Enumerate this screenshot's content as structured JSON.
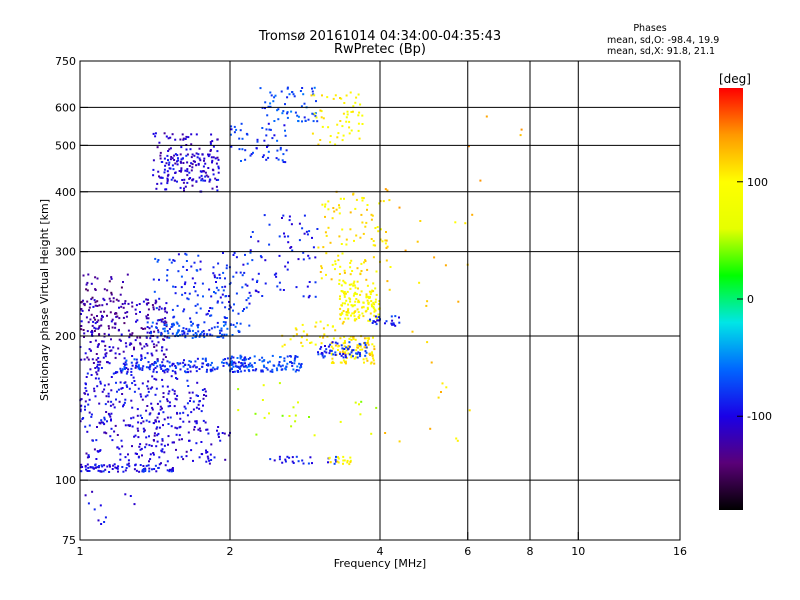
{
  "chart_data": {
    "type": "scatter",
    "title": "Tromsø 20161014 04:34:00-04:35:43",
    "subtitle": "RwPretec (Bp)",
    "xlabel": "Frequency [MHz]",
    "ylabel": "Stationary phase Virtual Height [km]",
    "x_scale": "log",
    "y_scale": "log",
    "xlim": [
      1,
      16
    ],
    "ylim": [
      75,
      750
    ],
    "x_ticks": [
      {
        "value": 1,
        "label": "1"
      },
      {
        "value": 2,
        "label": "2"
      },
      {
        "value": 4,
        "label": "4"
      },
      {
        "value": 6,
        "label": "6"
      },
      {
        "value": 8,
        "label": "8"
      },
      {
        "value": 10,
        "label": "10"
      },
      {
        "value": 16,
        "label": "16"
      }
    ],
    "y_ticks": [
      {
        "value": 75,
        "label": "75"
      },
      {
        "value": 100,
        "label": "100"
      },
      {
        "value": 200,
        "label": "200"
      },
      {
        "value": 300,
        "label": "300"
      },
      {
        "value": 400,
        "label": "400"
      },
      {
        "value": 500,
        "label": "500"
      },
      {
        "value": 600,
        "label": "600"
      },
      {
        "value": 750,
        "label": "750"
      }
    ],
    "x_gridlines": [
      2,
      4,
      6,
      8,
      10
    ],
    "y_gridlines": [
      100,
      200,
      300,
      400,
      500,
      600
    ],
    "grid": true,
    "phase_header": "Phases",
    "phase_stats": [
      "mean, sd,O: -98.4, 19.9",
      "mean, sd,X:  91.8, 21.1"
    ],
    "colorbar": {
      "label": "[deg]",
      "min": -180,
      "max": 180,
      "ticks": [
        {
          "value": 100,
          "label": "100"
        },
        {
          "value": 0,
          "label": "0"
        },
        {
          "value": -100,
          "label": "-100"
        }
      ],
      "colors": [
        "#000000",
        "#5a0078",
        "#1a00e6",
        "#0066ff",
        "#00e6e6",
        "#00ff00",
        "#e6ff00",
        "#ffff00",
        "#ff9900",
        "#ff0000"
      ]
    },
    "clusters": [
      {
        "x": [
          1.0,
          1.55
        ],
        "y": [
          104,
          108
        ],
        "phase": -95,
        "n": 90
      },
      {
        "x": [
          1.0,
          2.0
        ],
        "y": [
          108,
          130
        ],
        "phase": -105,
        "n": 150
      },
      {
        "x": [
          1.0,
          1.8
        ],
        "y": [
          130,
          175
        ],
        "phase": -100,
        "n": 260
      },
      {
        "x": [
          1.0,
          1.5
        ],
        "y": [
          175,
          240
        ],
        "phase": -115,
        "n": 220
      },
      {
        "x": [
          1.0,
          1.25
        ],
        "y": [
          200,
          270
        ],
        "phase": -130,
        "n": 60
      },
      {
        "x": [
          1.2,
          2.2
        ],
        "y": [
          168,
          180
        ],
        "phase": -80,
        "n": 140
      },
      {
        "x": [
          1.35,
          2.1
        ],
        "y": [
          198,
          214
        ],
        "phase": -75,
        "n": 120
      },
      {
        "x": [
          1.4,
          2.2
        ],
        "y": [
          210,
          300
        ],
        "phase": -85,
        "n": 140
      },
      {
        "x": [
          1.4,
          1.9
        ],
        "y": [
          400,
          530
        ],
        "phase": -110,
        "n": 130
      },
      {
        "x": [
          1.45,
          1.9
        ],
        "y": [
          420,
          480
        ],
        "phase": -100,
        "n": 70
      },
      {
        "x": [
          2.0,
          2.8
        ],
        "y": [
          168,
          182
        ],
        "phase": -75,
        "n": 110
      },
      {
        "x": [
          2.3,
          3.0
        ],
        "y": [
          560,
          660
        ],
        "phase": -70,
        "n": 60
      },
      {
        "x": [
          2.0,
          2.6
        ],
        "y": [
          460,
          560
        ],
        "phase": -80,
        "n": 55
      },
      {
        "x": [
          2.2,
          3.0
        ],
        "y": [
          240,
          360
        ],
        "phase": -90,
        "n": 70
      },
      {
        "x": [
          2.9,
          3.7
        ],
        "y": [
          500,
          650
        ],
        "phase": 100,
        "n": 55
      },
      {
        "x": [
          3.0,
          4.2
        ],
        "y": [
          260,
          400
        ],
        "phase": 110,
        "n": 110
      },
      {
        "x": [
          3.3,
          4.0
        ],
        "y": [
          215,
          260
        ],
        "phase": 95,
        "n": 140
      },
      {
        "x": [
          3.2,
          3.9
        ],
        "y": [
          175,
          200
        ],
        "phase": 110,
        "n": 90
      },
      {
        "x": [
          2.5,
          3.5
        ],
        "y": [
          185,
          215
        ],
        "phase": 105,
        "n": 40
      },
      {
        "x": [
          3.0,
          3.8
        ],
        "y": [
          180,
          195
        ],
        "phase": -85,
        "n": 60
      },
      {
        "x": [
          3.8,
          4.4
        ],
        "y": [
          210,
          220
        ],
        "phase": -90,
        "n": 25
      },
      {
        "x": [
          2.4,
          3.3
        ],
        "y": [
          108,
          112
        ],
        "phase": -90,
        "n": 25
      },
      {
        "x": [
          3.1,
          3.5
        ],
        "y": [
          108,
          112
        ],
        "phase": 100,
        "n": 18
      },
      {
        "x": [
          4.0,
          6.2
        ],
        "y": [
          120,
          420
        ],
        "phase": 120,
        "n": 30
      },
      {
        "x": [
          1.0,
          1.35
        ],
        "y": [
          80,
          96
        ],
        "phase": -100,
        "n": 12
      },
      {
        "x": [
          2.0,
          4.0
        ],
        "y": [
          120,
          160
        ],
        "phase": 60,
        "n": 25
      },
      {
        "x": [
          6.0,
          7.8
        ],
        "y": [
          400,
          600
        ],
        "phase": 130,
        "n": 5
      }
    ]
  }
}
